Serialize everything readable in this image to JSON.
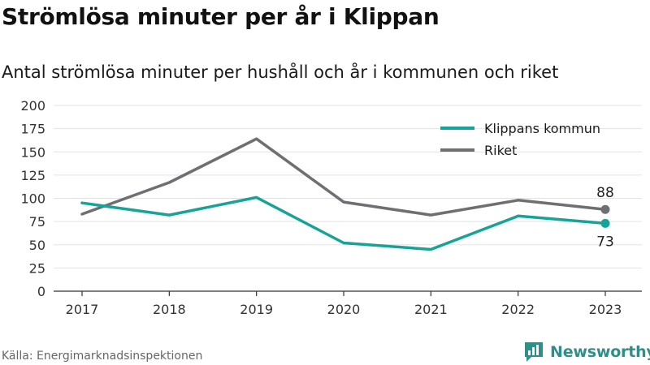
{
  "header": {
    "title": "Strömlösa minuter per år i Klippan",
    "subtitle": "Antal strömlösa minuter per hushåll och år i kommunen och riket"
  },
  "footer": {
    "source": "Källa: Energimarknadsinspektionen",
    "brand_name": "Newsworthy",
    "brand_icon": "newsworthy-logo-icon",
    "brand_color": "#2e8f8a"
  },
  "chart_data": {
    "type": "line",
    "title": "Strömlösa minuter per år i Klippan",
    "subtitle": "Antal strömlösa minuter per hushåll och år i kommunen och riket",
    "xlabel": "",
    "ylabel": "",
    "categories": [
      "2017",
      "2018",
      "2019",
      "2020",
      "2021",
      "2022",
      "2023"
    ],
    "ylim": [
      0,
      200
    ],
    "yticks": [
      0,
      25,
      50,
      75,
      100,
      125,
      150,
      175,
      200
    ],
    "grid": true,
    "legend_position": "top-right",
    "series": [
      {
        "name": "Klippans kommun",
        "color": "#17a398",
        "values": [
          95,
          82,
          101,
          52,
          45,
          81,
          73
        ],
        "end_label": "73"
      },
      {
        "name": "Riket",
        "color": "#6e6e73",
        "values": [
          83,
          117,
          164,
          96,
          82,
          98,
          88
        ],
        "end_label": "88"
      }
    ]
  }
}
